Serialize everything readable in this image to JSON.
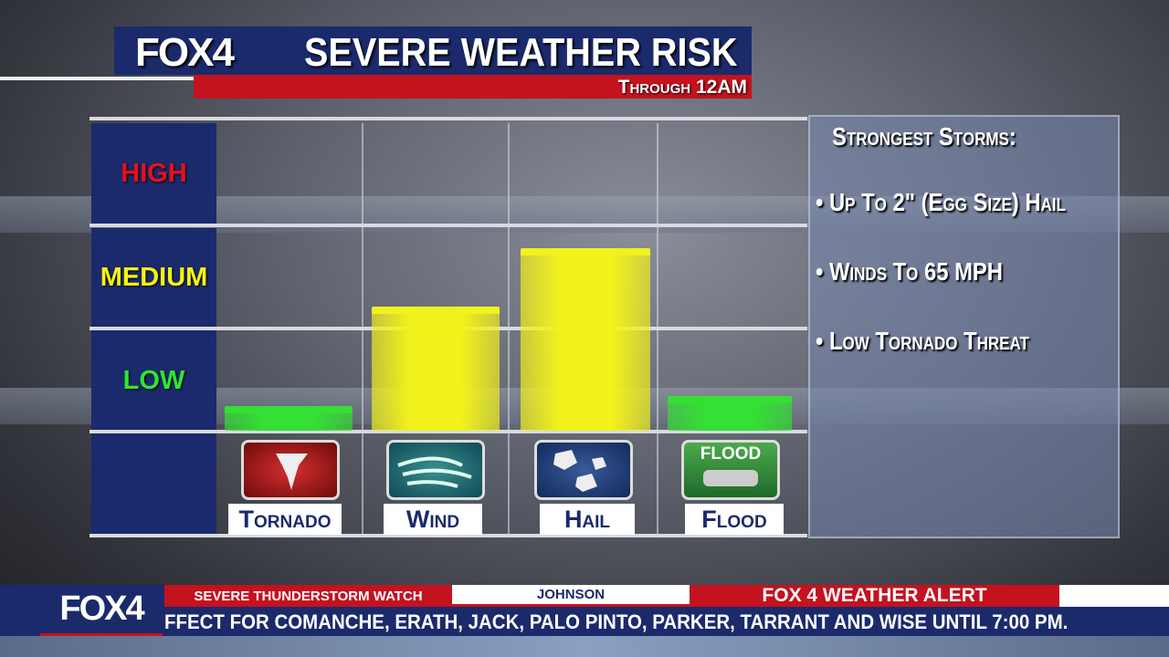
{
  "header": {
    "logo": "FOX4",
    "title": "SEVERE WEATHER RISK",
    "subtitle": "Through 12AM"
  },
  "chart_data": {
    "type": "bar",
    "title": "SEVERE WEATHER RISK",
    "subtitle": "Through 12AM",
    "categories": [
      "Tornado",
      "Wind",
      "Hail",
      "Flood"
    ],
    "values": [
      0.25,
      1.2,
      1.8,
      0.35
    ],
    "levels": [
      "LOW",
      "MEDIUM",
      "HIGH"
    ],
    "ylim": [
      0,
      3
    ],
    "bar_colors": [
      "#33e033",
      "#f2f21c",
      "#f2f21c",
      "#33e033"
    ],
    "level_colors": {
      "HIGH": "#e8101a",
      "MEDIUM": "#f4f410",
      "LOW": "#2ee82e"
    },
    "icons": [
      "tornado-icon",
      "wind-icon",
      "hail-icon",
      "flood-icon"
    ],
    "icon_badge_text": "FLOOD"
  },
  "panel": {
    "heading": "Strongest Storms:",
    "items": [
      "Up To 2\" (Egg Size) Hail",
      "Winds To 65 MPH",
      "Low Tornado Threat"
    ]
  },
  "ticker": {
    "logo": "FOX4",
    "segments": [
      "SEVERE THUNDERSTORM WATCH",
      "JOHNSON",
      "FOX 4 WEATHER ALERT"
    ],
    "crawl": "FFECT FOR COMANCHE, ERATH, JACK, PALO PINTO, PARKER, TARRANT AND WISE UNTIL 7:00 PM."
  }
}
